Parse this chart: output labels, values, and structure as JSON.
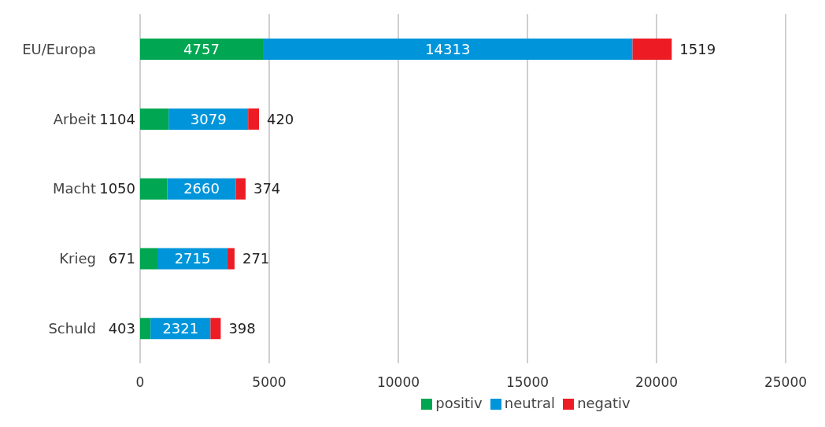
{
  "chart_data": {
    "type": "bar",
    "orientation": "horizontal",
    "stacked": true,
    "categories": [
      "EU/Europa",
      "Arbeit",
      "Macht",
      "Krieg",
      "Schuld"
    ],
    "series": [
      {
        "name": "positiv",
        "color": "#00a651",
        "values": [
          4757,
          1104,
          1050,
          671,
          403
        ]
      },
      {
        "name": "neutral",
        "color": "#0095da",
        "values": [
          14313,
          3079,
          2660,
          2715,
          2321
        ]
      },
      {
        "name": "negativ",
        "color": "#ed1c24",
        "values": [
          1519,
          420,
          374,
          271,
          398
        ]
      }
    ],
    "xlim": [
      0,
      25000
    ],
    "xticks": [
      0,
      5000,
      10000,
      15000,
      20000,
      25000
    ],
    "grid": "x",
    "legend": "bottom",
    "data_labels": true
  }
}
